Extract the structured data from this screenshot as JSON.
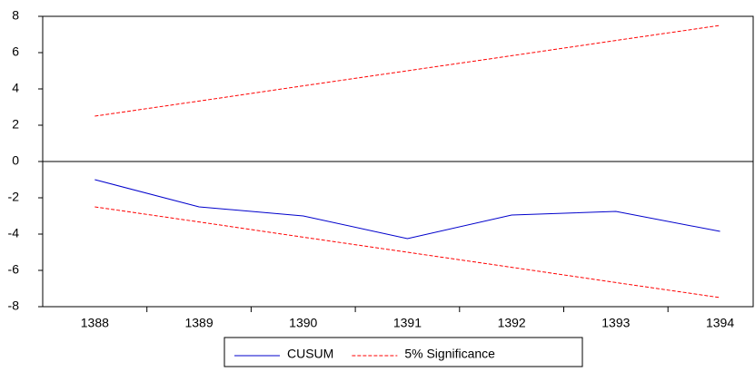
{
  "chart_data": {
    "type": "line",
    "categories": [
      "1388",
      "1389",
      "1390",
      "1391",
      "1392",
      "1393",
      "1394"
    ],
    "series": [
      {
        "name": "CUSUM",
        "color": "#0000cc",
        "dashed": false,
        "values": [
          -1.0,
          -2.5,
          -3.0,
          -4.25,
          -2.95,
          -2.75,
          -3.85
        ]
      },
      {
        "name": "5% Significance",
        "color": "#ff0000",
        "dashed": true,
        "values": [
          2.5,
          3.33,
          4.17,
          5.0,
          5.83,
          6.67,
          7.5
        ],
        "lower": [
          -2.5,
          -3.33,
          -4.17,
          -5.0,
          -5.83,
          -6.67,
          -7.5
        ]
      }
    ],
    "ylim": [
      -8,
      8
    ],
    "yticks": [
      -8,
      -6,
      -4,
      -2,
      0,
      2,
      4,
      6,
      8
    ],
    "grid": false,
    "legend": "bottom"
  }
}
